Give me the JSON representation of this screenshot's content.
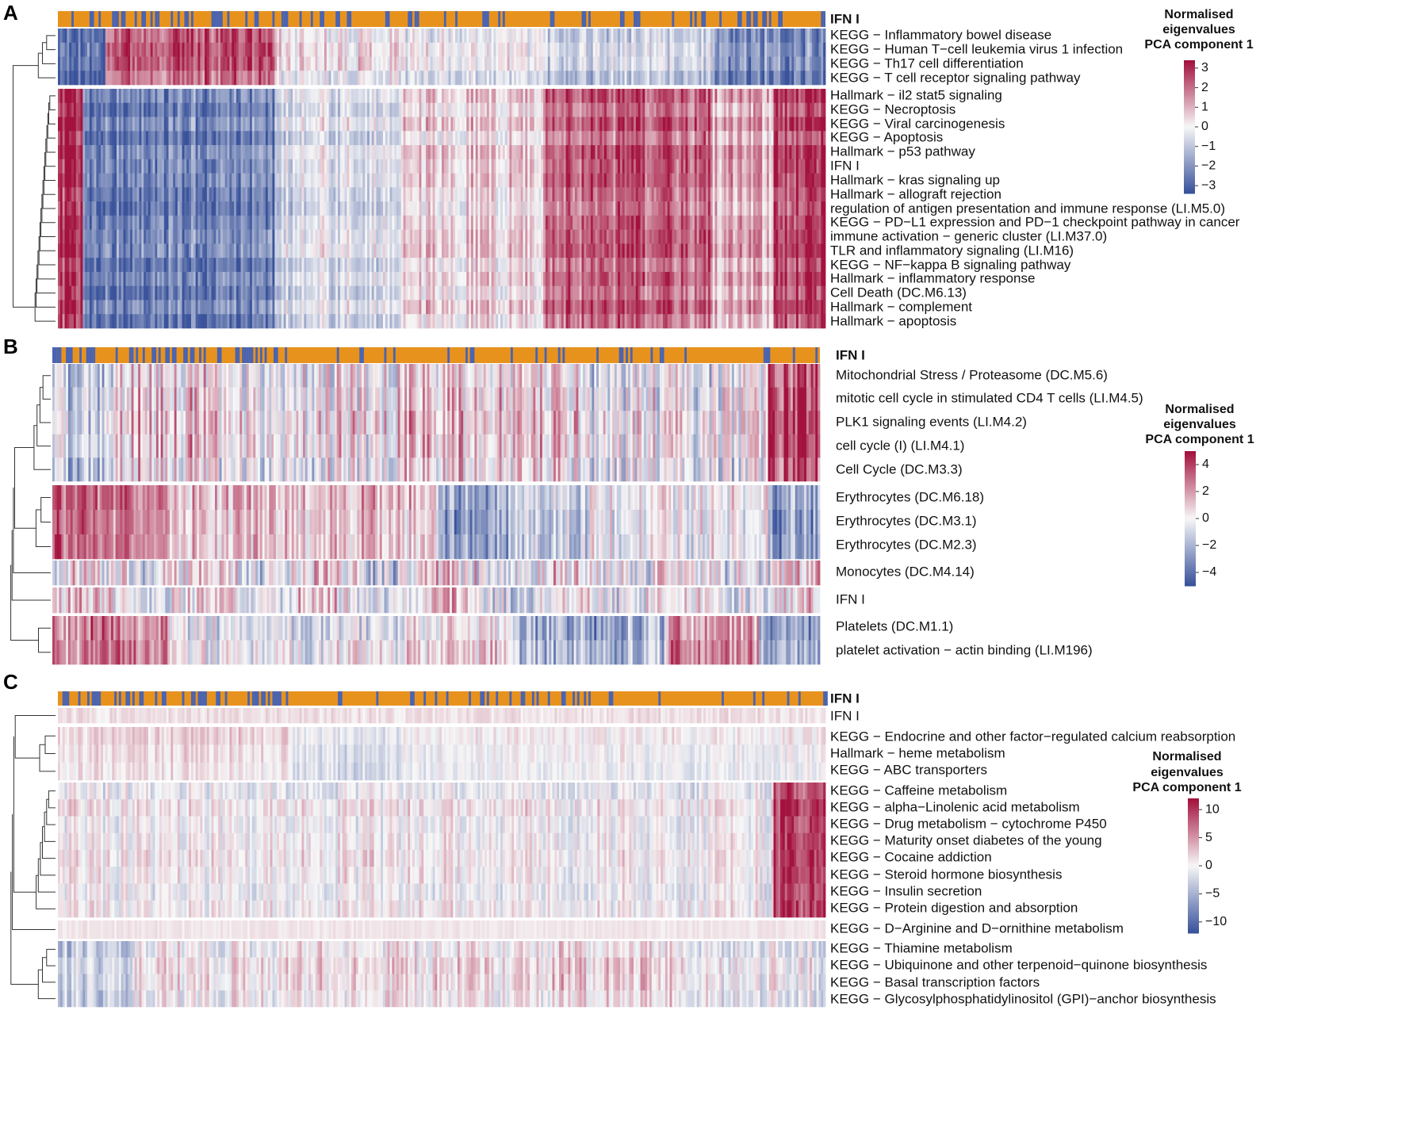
{
  "chart_data": [
    {
      "type": "heatmap",
      "panel_label": "A",
      "annotation_label": "IFN I",
      "annotation_colors": {
        "high": "#E8921E",
        "low": "#4A64B0"
      },
      "color_scale": {
        "low": "#3A539B",
        "mid": "#F7F7F7",
        "high": "#A3123E"
      },
      "legend": {
        "title": [
          "Normalised",
          "eigenvalues",
          "PCA component 1"
        ],
        "ticks": [
          "3",
          "2",
          "1",
          "0",
          "−1",
          "−2",
          "−3"
        ],
        "range": [
          -3.4,
          3.4
        ]
      },
      "row_groups": [
        4,
        17
      ],
      "rows": [
        "KEGG − Inflammatory bowel disease",
        "KEGG − Human T−cell leukemia virus 1 infection",
        "KEGG − Th17 cell differentiation",
        "KEGG − T cell receptor signaling pathway",
        "Hallmark − il2 stat5 signaling",
        "KEGG − Necroptosis",
        "KEGG − Viral carcinogenesis",
        "KEGG − Apoptosis",
        "Hallmark − p53 pathway",
        "IFN I",
        "Hallmark − kras signaling up",
        "Hallmark − allograft rejection",
        "regulation of antigen presentation and immune response (LI.M5.0)",
        "KEGG − PD−L1 expression and PD−1 checkpoint pathway in cancer",
        "immune activation − generic cluster (LI.M37.0)",
        "TLR and inflammatory signaling (LI.M16)",
        "KEGG − NF−kappa B signaling pathway",
        "Hallmark − inflammatory response",
        "Cell Death (DC.M6.13)",
        "Hallmark − complement",
        "Hallmark − apoptosis"
      ]
    },
    {
      "type": "heatmap",
      "panel_label": "B",
      "annotation_label": "IFN I",
      "annotation_colors": {
        "high": "#E8921E",
        "low": "#4A64B0"
      },
      "color_scale": {
        "low": "#3A539B",
        "mid": "#F7F7F7",
        "high": "#A3123E"
      },
      "legend": {
        "title": [
          "Normalised",
          "eigenvalues",
          "PCA component 1"
        ],
        "ticks": [
          "4",
          "2",
          "0",
          "−2",
          "−4"
        ],
        "range": [
          -5,
          5
        ]
      },
      "row_groups": [
        5,
        3,
        1,
        1,
        2
      ],
      "rows": [
        "Mitochondrial Stress / Proteasome (DC.M5.6)",
        "mitotic cell cycle in stimulated CD4 T cells (LI.M4.5)",
        "PLK1 signaling events (LI.M4.2)",
        "cell cycle (I) (LI.M4.1)",
        "Cell Cycle (DC.M3.3)",
        "Erythrocytes (DC.M6.18)",
        "Erythrocytes (DC.M3.1)",
        "Erythrocytes (DC.M2.3)",
        "Monocytes (DC.M4.14)",
        "IFN I",
        "Platelets (DC.M1.1)",
        "platelet activation − actin binding (LI.M196)"
      ]
    },
    {
      "type": "heatmap",
      "panel_label": "C",
      "annotation_label": "IFN I",
      "annotation_colors": {
        "high": "#E8921E",
        "low": "#4A64B0"
      },
      "color_scale": {
        "low": "#3A539B",
        "mid": "#F7F7F7",
        "high": "#A3123E"
      },
      "legend": {
        "title": [
          "Normalised",
          "eigenvalues",
          "PCA component 1"
        ],
        "ticks": [
          "10",
          "5",
          "0",
          "−5",
          "−10"
        ],
        "range": [
          -12,
          12
        ]
      },
      "row_groups": [
        1,
        3,
        8,
        1,
        4
      ],
      "rows": [
        "IFN I",
        "KEGG − Endocrine and other factor−regulated calcium reabsorption",
        "Hallmark − heme metabolism",
        "KEGG − ABC transporters",
        "KEGG − Caffeine metabolism",
        "KEGG − alpha−Linolenic acid metabolism",
        "KEGG − Drug metabolism − cytochrome P450",
        "KEGG − Maturity onset diabetes of the young",
        "KEGG − Cocaine addiction",
        "KEGG − Steroid hormone biosynthesis",
        "KEGG − Insulin secretion",
        "KEGG − Protein digestion and absorption",
        "KEGG − D−Arginine and D−ornithine metabolism",
        "KEGG − Thiamine metabolism",
        "KEGG − Ubiquinone and other terpenoid−quinone biosynthesis",
        "KEGG − Basal transcription factors",
        "KEGG − Glycosylphosphatidylinositol (GPI)−anchor biosynthesis"
      ]
    }
  ]
}
